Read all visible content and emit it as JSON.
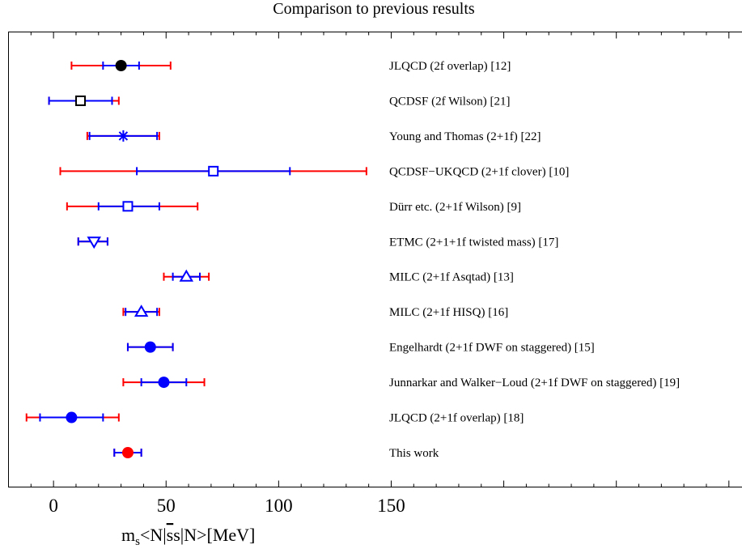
{
  "chart_data": {
    "type": "scatter",
    "title": "Comparison to previous results",
    "xlabel_parts": [
      "m",
      "s",
      "<N|",
      "s",
      "s|N>[MeV]"
    ],
    "xlim": [
      -20,
      306
    ],
    "xticks": [
      0,
      50,
      100,
      150
    ],
    "xtick_labels": [
      "0",
      "50",
      "100",
      "150"
    ],
    "grid": false,
    "colors": {
      "total_error": "#ff0000",
      "stat_error": "#0000ff",
      "black": "#000000"
    },
    "series": [
      {
        "name": "JLQCD (2f overlap) [12]",
        "value": 30,
        "stat": [
          22,
          38
        ],
        "total": [
          8,
          52
        ],
        "marker": "circle-filled",
        "color": "#000000"
      },
      {
        "name": "QCDSF (2f Wilson) [21]",
        "value": 12,
        "stat": [
          -2,
          26
        ],
        "total": [
          -2,
          29
        ],
        "marker": "square-open",
        "color": "#000000"
      },
      {
        "name": "Young and Thomas (2+1f) [22]",
        "value": 31,
        "stat": [
          16,
          46
        ],
        "total": [
          15,
          47
        ],
        "marker": "asterisk",
        "color": "#0000ff"
      },
      {
        "name": "QCDSF−UKQCD (2+1f clover) [10]",
        "value": 71,
        "stat": [
          37,
          105
        ],
        "total": [
          3,
          139
        ],
        "marker": "square-open",
        "color": "#0000ff"
      },
      {
        "name": "Dürr etc. (2+1f Wilson) [9]",
        "value": 33,
        "stat": [
          20,
          47
        ],
        "total": [
          6,
          64
        ],
        "marker": "square-open",
        "color": "#0000ff"
      },
      {
        "name": "ETMC (2+1+1f twisted mass) [17]",
        "value": 18,
        "stat": [
          11,
          24
        ],
        "total": [
          11,
          24
        ],
        "marker": "triangle-down-open",
        "color": "#0000ff"
      },
      {
        "name": "MILC (2+1f Asqtad) [13]",
        "value": 59,
        "stat": [
          53,
          65
        ],
        "total": [
          49,
          69
        ],
        "marker": "triangle-up-open",
        "color": "#0000ff"
      },
      {
        "name": "MILC (2+1f HISQ) [16]",
        "value": 39,
        "stat": [
          32,
          46
        ],
        "total": [
          31,
          47
        ],
        "marker": "triangle-up-open",
        "color": "#0000ff"
      },
      {
        "name": "Engelhardt (2+1f DWF on staggered) [15]",
        "value": 43,
        "stat": [
          33,
          53
        ],
        "total": [
          33,
          53
        ],
        "marker": "circle-filled",
        "color": "#0000ff"
      },
      {
        "name": "Junnarkar and Walker−Loud (2+1f DWF on staggered) [19]",
        "value": 49,
        "stat": [
          39,
          59
        ],
        "total": [
          31,
          67
        ],
        "marker": "circle-filled",
        "color": "#0000ff"
      },
      {
        "name": "JLQCD (2+1f overlap) [18]",
        "value": 8,
        "stat": [
          -6,
          22
        ],
        "total": [
          -12,
          29
        ],
        "marker": "circle-filled",
        "color": "#0000ff"
      },
      {
        "name": "This work",
        "value": 33,
        "stat": [
          27,
          39
        ],
        "total": [
          27,
          39
        ],
        "marker": "circle-filled",
        "color": "#ff0000"
      }
    ]
  }
}
